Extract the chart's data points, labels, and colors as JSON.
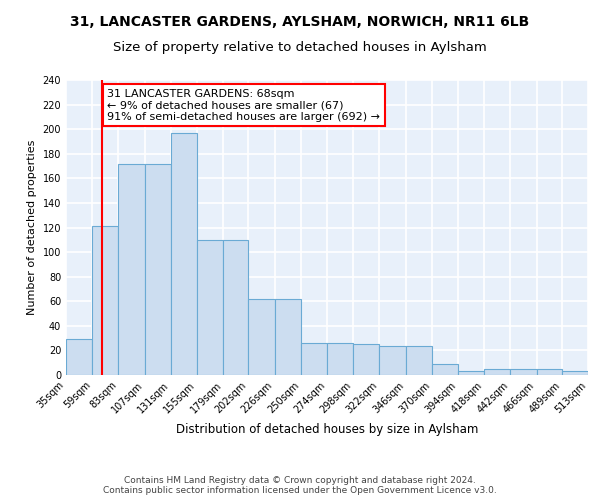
{
  "title1": "31, LANCASTER GARDENS, AYLSHAM, NORWICH, NR11 6LB",
  "title2": "Size of property relative to detached houses in Aylsham",
  "xlabel": "Distribution of detached houses by size in Aylsham",
  "ylabel": "Number of detached properties",
  "bin_edges": [
    35,
    59,
    83,
    107,
    131,
    155,
    179,
    202,
    226,
    250,
    274,
    298,
    322,
    346,
    370,
    394,
    418,
    442,
    466,
    489,
    513
  ],
  "heights": [
    29,
    121,
    172,
    172,
    197,
    110,
    110,
    62,
    62,
    26,
    26,
    25,
    24,
    24,
    9,
    3,
    5,
    5,
    5,
    3
  ],
  "tick_labels": [
    "35sqm",
    "59sqm",
    "83sqm",
    "107sqm",
    "131sqm",
    "155sqm",
    "179sqm",
    "202sqm",
    "226sqm",
    "250sqm",
    "274sqm",
    "298sqm",
    "322sqm",
    "346sqm",
    "370sqm",
    "394sqm",
    "418sqm",
    "442sqm",
    "466sqm",
    "489sqm",
    "513sqm"
  ],
  "bar_color": "#ccddf0",
  "bar_edge_color": "#6aaad4",
  "vline_x": 68,
  "vline_color": "red",
  "annotation_text": "31 LANCASTER GARDENS: 68sqm\n← 9% of detached houses are smaller (67)\n91% of semi-detached houses are larger (692) →",
  "annotation_box_color": "white",
  "annotation_box_edge_color": "red",
  "ylim": [
    0,
    240
  ],
  "yticks": [
    0,
    20,
    40,
    60,
    80,
    100,
    120,
    140,
    160,
    180,
    200,
    220,
    240
  ],
  "footer_text": "Contains HM Land Registry data © Crown copyright and database right 2024.\nContains public sector information licensed under the Open Government Licence v3.0.",
  "bg_color": "#e8f0fa",
  "grid_color": "white",
  "title1_fontsize": 10,
  "title2_fontsize": 9.5,
  "xlabel_fontsize": 8.5,
  "ylabel_fontsize": 8,
  "tick_fontsize": 7,
  "annotation_fontsize": 8
}
